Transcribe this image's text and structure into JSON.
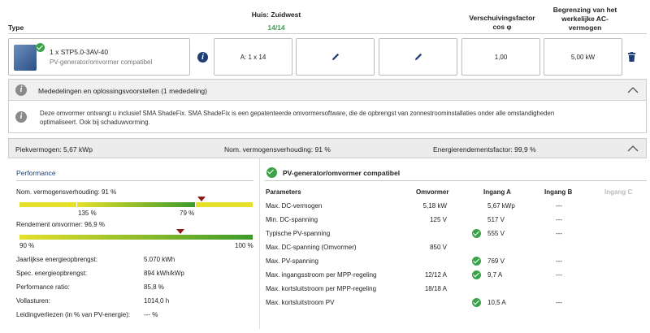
{
  "header": {
    "type_label": "Type",
    "string_title": "Huis: Zuidwest",
    "string_count": "14/14",
    "shift_factor_line1": "Verschuivingsfactor",
    "shift_factor_line2": "cos φ",
    "limit_line1": "Begrenzing van het",
    "limit_line2": "werkelijke AC-",
    "limit_line3": "vermogen"
  },
  "inverter": {
    "name": "1 x STP5.0-3AV-40",
    "status": "PV-generator/omvormer compatibel",
    "string_config": "A: 1 x 14",
    "cos_phi": "1,00",
    "ac_limit": "5,00 kW"
  },
  "notices": {
    "title": "Mededelingen en oplossingsvoorstellen (1 mededeling)",
    "message_line1": "Deze omvormer ontvangt u inclusief SMA ShadeFix. SMA ShadeFix is een gepatenteerde omvormersoftware, die de opbrengst van zonnestroominstallaties onder alle omstandigheden",
    "message_line2": "optimaliseert. Ook bij schaduwvorming."
  },
  "summary": {
    "peak_power": "Piekvermogen: 5,67 kWp",
    "nominal_ratio": "Nom. vermogensverhouding: 91 %",
    "energy_factor": "Energierendementsfactor: 99,9 %"
  },
  "performance": {
    "title": "Performance",
    "nominal_ratio_label": "Nom. vermogensverhouding: 91 %",
    "bar1_left": "135 %",
    "bar1_right": "79 %",
    "bar1_marker_fraction": 0.78,
    "efficiency_label": "Rendement omvormer: 96,9 %",
    "bar2_left": "90 %",
    "bar2_right": "100 %",
    "bar2_marker_fraction": 0.69,
    "rows": [
      {
        "label": "Jaarlijkse energieopbrengst:",
        "value": "5.070 kWh"
      },
      {
        "label": "Spec. energieopbrengst:",
        "value": "894 kWh/kWp"
      },
      {
        "label": "Performance ratio:",
        "value": "85,8 %"
      },
      {
        "label": "Vollasturen:",
        "value": "1014,0 h"
      },
      {
        "label": "Leidingverliezen (in % van PV-energie):",
        "value": "--- %"
      }
    ]
  },
  "compat": {
    "title": "PV-generator/omvormer compatibel",
    "columns": [
      "Parameters",
      "Omvormer",
      "Ingang A",
      "Ingang B",
      "Ingang C"
    ],
    "rows": [
      {
        "param": "Max. DC-vermogen",
        "inverter": "5,18 kW",
        "a": "5,67 kWp",
        "a_ok": false,
        "b": "---"
      },
      {
        "param": "Min. DC-spanning",
        "inverter": "125 V",
        "a": "517 V",
        "a_ok": false,
        "b": "---"
      },
      {
        "param": "Typische PV-spanning",
        "inverter": "",
        "a": "555 V",
        "a_ok": true,
        "b": "---"
      },
      {
        "param": "Max. DC-spanning (Omvormer)",
        "inverter": "850 V",
        "a": "",
        "a_ok": false,
        "b": ""
      },
      {
        "param": "Max. PV-spanning",
        "inverter": "",
        "a": "769 V",
        "a_ok": true,
        "b": "---"
      },
      {
        "param": "Max. ingangsstroom per MPP-regeling",
        "inverter": "12/12 A",
        "a": "9,7 A",
        "a_ok": true,
        "b": "---"
      },
      {
        "param": "Max. kortsluitstroom per MPP-regeling",
        "inverter": "18/18 A",
        "a": "",
        "a_ok": false,
        "b": ""
      },
      {
        "param": "Max. kortsluitstroom PV",
        "inverter": "",
        "a": "10,5 A",
        "a_ok": true,
        "b": "---"
      }
    ]
  },
  "colors": {
    "accent_green": "#3aa34a",
    "bar_yellow": "#e6e02a",
    "bar_green": "#3c9a2a",
    "marker": "#8b1a1a"
  }
}
